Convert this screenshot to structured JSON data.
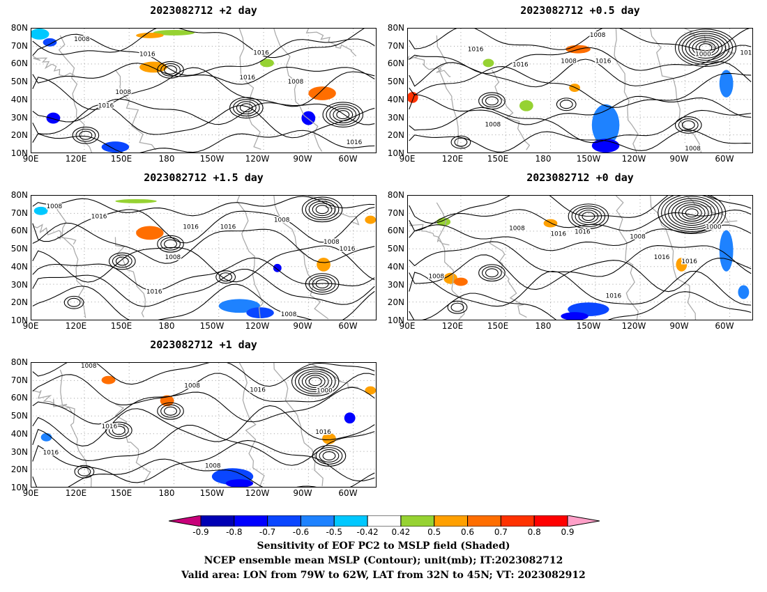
{
  "panels": [
    {
      "title": "2023082712  +2 day",
      "contours": [
        "1008",
        "1016",
        "1008",
        "1016",
        "1016",
        "1016",
        "1008",
        "1016"
      ]
    },
    {
      "title": "2023082712  +0.5 day",
      "contours": [
        "1008",
        "1016",
        "1016",
        "1008",
        "1016",
        "1000",
        "1016",
        "1008",
        "1008"
      ]
    },
    {
      "title": "2023082712  +1.5 day",
      "contours": [
        "1008",
        "1016",
        "1016",
        "1016",
        "1008",
        "1008",
        "1016",
        "1008",
        "1016",
        "1008"
      ]
    },
    {
      "title": "2023082712  +0 day",
      "contours": [
        "1008",
        "1008",
        "1016",
        "1016",
        "1000",
        "1008",
        "1016",
        "1016",
        "1016"
      ]
    },
    {
      "title": "2023082712  +1 day",
      "contours": [
        "1008",
        "1016",
        "1008",
        "1016",
        "1000",
        "1016",
        "1008",
        "1016"
      ]
    }
  ],
  "axes": {
    "lat_labels": [
      "80N",
      "70N",
      "60N",
      "50N",
      "40N",
      "30N",
      "20N",
      "10N"
    ],
    "lon_labels": [
      "90E",
      "120E",
      "150E",
      "180",
      "150W",
      "120W",
      "90W",
      "60W"
    ]
  },
  "colorbar": {
    "ticks": [
      "-0.9",
      "-0.8",
      "-0.7",
      "-0.6",
      "-0.5",
      "-0.42",
      "0.42",
      "0.5",
      "0.6",
      "0.7",
      "0.8",
      "0.9"
    ],
    "colors": [
      "#c8007a",
      "#0000b4",
      "#0000ff",
      "#0a46ff",
      "#1e82ff",
      "#00c8ff",
      "#ffffff",
      "#96d232",
      "#ffa000",
      "#ff6e00",
      "#ff3200",
      "#ff0000",
      "#ffa0c8"
    ]
  },
  "captions": [
    "Sensitivity of EOF PC2 to MSLP field (Shaded)",
    "NCEP ensemble mean MSLP (Contour); unit(mb); IT:2023082712",
    "Valid area: LON from 79W to 62W, LAT from 32N to 45N; VT: 2023082912"
  ]
}
